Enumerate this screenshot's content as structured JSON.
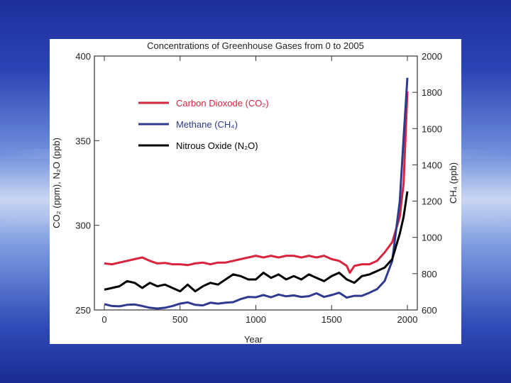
{
  "chart_data": {
    "type": "line",
    "title": "Concentrations of Greenhouse Gases from 0 to 2005",
    "xlabel": "Year",
    "ylabel_left": "CO₂ (ppm), N₂O (ppb)",
    "ylabel_right": "CH₄ (ppb)",
    "xlim": [
      0,
      2000
    ],
    "ylim_left": [
      250,
      400
    ],
    "ylim_right": [
      600,
      2000
    ],
    "x_ticks": [
      "0",
      "500",
      "1000",
      "1500",
      "2000"
    ],
    "y_ticks_left": [
      "250",
      "300",
      "350",
      "400"
    ],
    "y_ticks_right": [
      "600",
      "800",
      "1000",
      "1200",
      "1400",
      "1600",
      "1800",
      "2000"
    ],
    "legend_position": "upper-left",
    "series": [
      {
        "name": "Carbon Dioxode (CO₂)",
        "axis": "left",
        "color": "#d8243c",
        "points": [
          [
            0,
            277.5
          ],
          [
            50,
            277
          ],
          [
            100,
            278
          ],
          [
            150,
            279
          ],
          [
            200,
            280
          ],
          [
            250,
            281
          ],
          [
            300,
            279
          ],
          [
            350,
            277.5
          ],
          [
            400,
            277.8
          ],
          [
            450,
            277
          ],
          [
            500,
            277
          ],
          [
            550,
            276.5
          ],
          [
            600,
            277.5
          ],
          [
            650,
            278
          ],
          [
            700,
            277
          ],
          [
            750,
            278
          ],
          [
            800,
            278
          ],
          [
            850,
            279
          ],
          [
            900,
            280
          ],
          [
            950,
            281
          ],
          [
            1000,
            282
          ],
          [
            1050,
            281
          ],
          [
            1100,
            282
          ],
          [
            1150,
            281
          ],
          [
            1200,
            282
          ],
          [
            1250,
            282
          ],
          [
            1300,
            281
          ],
          [
            1350,
            282
          ],
          [
            1400,
            281
          ],
          [
            1450,
            282
          ],
          [
            1500,
            280
          ],
          [
            1550,
            279
          ],
          [
            1600,
            276
          ],
          [
            1620,
            272
          ],
          [
            1650,
            276
          ],
          [
            1700,
            277
          ],
          [
            1750,
            277
          ],
          [
            1800,
            279
          ],
          [
            1850,
            284
          ],
          [
            1900,
            290
          ],
          [
            1950,
            305
          ],
          [
            1975,
            325
          ],
          [
            2000,
            379
          ]
        ]
      },
      {
        "name": "Methane (CH₄)",
        "axis": "right",
        "color": "#2e3a8f",
        "points": [
          [
            0,
            632
          ],
          [
            50,
            622
          ],
          [
            100,
            620
          ],
          [
            150,
            628
          ],
          [
            200,
            630
          ],
          [
            250,
            622
          ],
          [
            300,
            612
          ],
          [
            350,
            608
          ],
          [
            400,
            612
          ],
          [
            450,
            622
          ],
          [
            500,
            635
          ],
          [
            550,
            642
          ],
          [
            600,
            628
          ],
          [
            650,
            625
          ],
          [
            700,
            640
          ],
          [
            750,
            635
          ],
          [
            800,
            640
          ],
          [
            850,
            643
          ],
          [
            900,
            660
          ],
          [
            950,
            672
          ],
          [
            1000,
            670
          ],
          [
            1050,
            682
          ],
          [
            1100,
            670
          ],
          [
            1150,
            685
          ],
          [
            1200,
            675
          ],
          [
            1250,
            680
          ],
          [
            1300,
            672
          ],
          [
            1350,
            676
          ],
          [
            1400,
            692
          ],
          [
            1450,
            672
          ],
          [
            1500,
            682
          ],
          [
            1550,
            695
          ],
          [
            1600,
            668
          ],
          [
            1650,
            678
          ],
          [
            1700,
            678
          ],
          [
            1750,
            695
          ],
          [
            1800,
            715
          ],
          [
            1850,
            760
          ],
          [
            1900,
            870
          ],
          [
            1950,
            1200
          ],
          [
            1975,
            1550
          ],
          [
            2000,
            1880
          ]
        ]
      },
      {
        "name": "Nitrous Oxide (N₂O)",
        "axis": "left",
        "color": "#000000",
        "points": [
          [
            0,
            262
          ],
          [
            50,
            263
          ],
          [
            100,
            264
          ],
          [
            150,
            267
          ],
          [
            200,
            266
          ],
          [
            250,
            263
          ],
          [
            300,
            266
          ],
          [
            350,
            264
          ],
          [
            400,
            265
          ],
          [
            450,
            263
          ],
          [
            500,
            261
          ],
          [
            550,
            265
          ],
          [
            600,
            261
          ],
          [
            650,
            264
          ],
          [
            700,
            266
          ],
          [
            750,
            265
          ],
          [
            800,
            268
          ],
          [
            850,
            271
          ],
          [
            900,
            270
          ],
          [
            950,
            268
          ],
          [
            1000,
            268
          ],
          [
            1050,
            272
          ],
          [
            1100,
            269
          ],
          [
            1150,
            271
          ],
          [
            1200,
            268
          ],
          [
            1250,
            270
          ],
          [
            1300,
            268
          ],
          [
            1350,
            271
          ],
          [
            1400,
            269
          ],
          [
            1450,
            267
          ],
          [
            1500,
            270
          ],
          [
            1550,
            272
          ],
          [
            1600,
            268
          ],
          [
            1650,
            266
          ],
          [
            1700,
            270
          ],
          [
            1750,
            271
          ],
          [
            1800,
            273
          ],
          [
            1850,
            275
          ],
          [
            1900,
            280
          ],
          [
            1950,
            295
          ],
          [
            1975,
            305
          ],
          [
            2000,
            320
          ]
        ]
      }
    ]
  }
}
